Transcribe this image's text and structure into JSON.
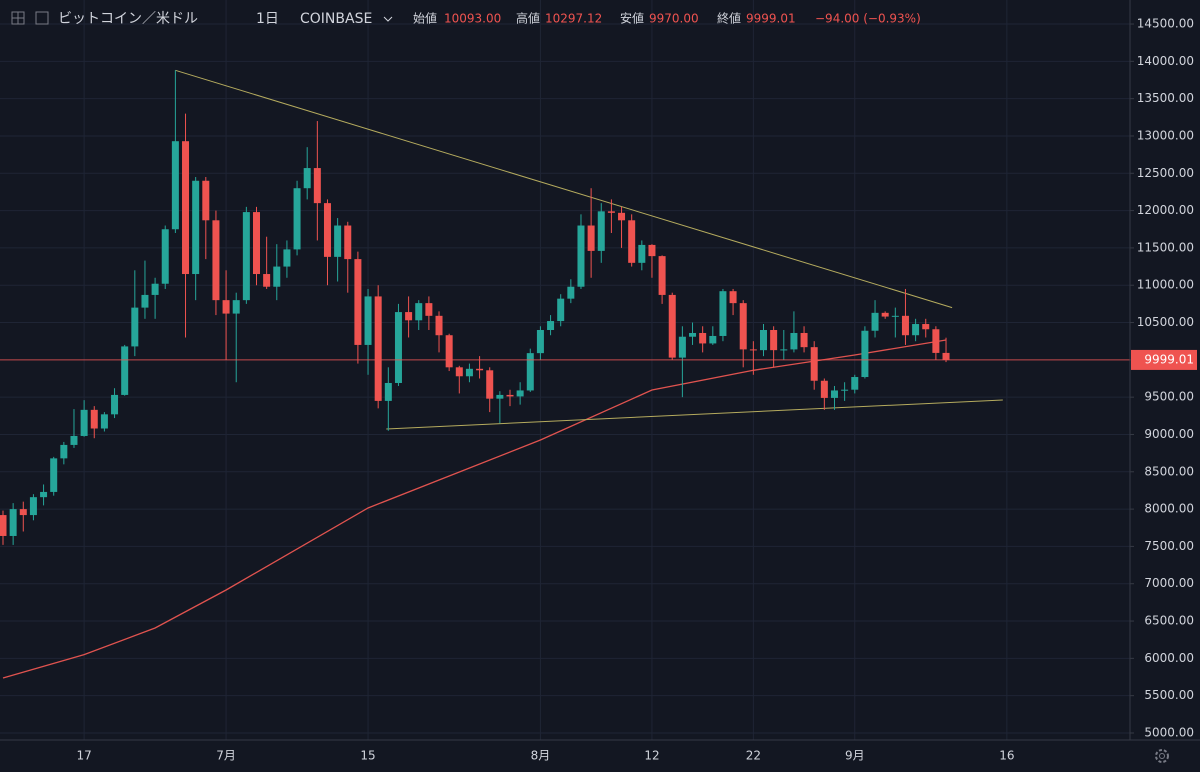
{
  "header": {
    "symbol": "ビットコイン／米ドル",
    "interval": "1日",
    "exchange": "COINBASE",
    "ohlc": [
      {
        "label": "始値",
        "value": "10093.00"
      },
      {
        "label": "高値",
        "value": "10297.12"
      },
      {
        "label": "安値",
        "value": "9970.00"
      },
      {
        "label": "終値",
        "value": "9999.01"
      }
    ],
    "change": "−94.00 (−0.93%)"
  },
  "chart_data": {
    "type": "candlestick",
    "categories": [
      null,
      null,
      null,
      null,
      null,
      null,
      null,
      null,
      "17",
      null,
      null,
      null,
      null,
      null,
      null,
      null,
      null,
      null,
      null,
      null,
      null,
      null,
      "7月",
      null,
      null,
      null,
      null,
      null,
      null,
      null,
      null,
      null,
      null,
      null,
      null,
      null,
      "15",
      null,
      null,
      null,
      null,
      null,
      null,
      null,
      null,
      null,
      null,
      null,
      null,
      null,
      null,
      null,
      null,
      "8月",
      null,
      null,
      null,
      null,
      null,
      null,
      null,
      null,
      null,
      null,
      "12",
      null,
      null,
      null,
      null,
      null,
      null,
      null,
      null,
      null,
      "22",
      null,
      null,
      null,
      null,
      null,
      null,
      null,
      null,
      null,
      "9月",
      null,
      null,
      null,
      null,
      null,
      null,
      null,
      null,
      null,
      null,
      null,
      null,
      null,
      null,
      "16"
    ],
    "open": [
      7920,
      7640,
      8000,
      7920,
      8160,
      8230,
      8680,
      8860,
      8980,
      9330,
      9080,
      9270,
      9530,
      10180,
      10700,
      10870,
      11020,
      11750,
      12930,
      11150,
      12400,
      11870,
      10800,
      10620,
      10800,
      11980,
      11150,
      10980,
      11250,
      11480,
      12300,
      12570,
      12100,
      11380,
      11800,
      11350,
      10200,
      10850,
      9450,
      9690,
      10640,
      10530,
      10760,
      10590,
      10330,
      9900,
      9780,
      9880,
      9860,
      9480,
      9530,
      9510,
      9590,
      10090,
      10400,
      10520,
      10820,
      10980,
      11800,
      11460,
      11990,
      11970,
      11870,
      11300,
      11540,
      11390,
      10870,
      10030,
      10310,
      10360,
      10220,
      10320,
      10920,
      10760,
      10140,
      10130,
      10400,
      10130,
      10140,
      10360,
      10170,
      9720,
      9490,
      9590,
      9600,
      9770,
      10390,
      10630,
      10580,
      10590,
      10330,
      10480,
      10410,
      10093,
      null,
      null,
      null,
      null,
      null,
      null
    ],
    "high": [
      7980,
      8080,
      8100,
      8200,
      8330,
      8700,
      8900,
      9340,
      9460,
      9380,
      9300,
      9620,
      10200,
      11200,
      11330,
      11100,
      11800,
      13880,
      13300,
      12450,
      12450,
      12000,
      11200,
      10900,
      12050,
      12050,
      11650,
      11550,
      11600,
      12400,
      12850,
      13200,
      12150,
      11900,
      11850,
      11450,
      10950,
      11000,
      9900,
      10750,
      10850,
      10800,
      10850,
      10650,
      10350,
      9920,
      9950,
      10050,
      9900,
      9580,
      9600,
      9700,
      10150,
      10450,
      10600,
      10880,
      11080,
      11950,
      12300,
      12100,
      12150,
      12050,
      11950,
      11600,
      11550,
      11400,
      10900,
      10450,
      10500,
      10450,
      10450,
      10950,
      10950,
      10800,
      10250,
      10480,
      10450,
      10400,
      10650,
      10450,
      10250,
      9750,
      9650,
      9700,
      9800,
      10450,
      10800,
      10650,
      10700,
      10950,
      10550,
      10550,
      10450,
      10297.12,
      null,
      null,
      null,
      null,
      null,
      null
    ],
    "low": [
      7520,
      7520,
      7700,
      7850,
      8050,
      8180,
      8600,
      8820,
      8970,
      8950,
      9040,
      9220,
      9520,
      10050,
      10550,
      10550,
      10950,
      11700,
      10300,
      10800,
      11350,
      10600,
      10000,
      9700,
      10750,
      11000,
      10950,
      10800,
      11100,
      11400,
      12150,
      11600,
      11000,
      11050,
      10900,
      9950,
      9800,
      9350,
      9050,
      9650,
      10300,
      10400,
      10400,
      10100,
      9850,
      9550,
      9700,
      9750,
      9300,
      9150,
      9380,
      9400,
      9570,
      10000,
      10330,
      10450,
      10760,
      10950,
      11100,
      11300,
      11700,
      11500,
      11250,
      11200,
      11100,
      10750,
      10000,
      9500,
      10200,
      10100,
      10200,
      10250,
      10600,
      9900,
      9800,
      10050,
      9900,
      10000,
      10100,
      10100,
      9600,
      9330,
      9330,
      9450,
      9550,
      9750,
      10300,
      10550,
      10300,
      10200,
      10250,
      10300,
      10000,
      9970,
      null,
      null,
      null,
      null,
      null,
      null
    ],
    "close": [
      7640,
      8000,
      7920,
      8160,
      8230,
      8680,
      8860,
      8980,
      9330,
      9080,
      9270,
      9530,
      10180,
      10700,
      10870,
      11020,
      11750,
      12930,
      11150,
      12400,
      11870,
      10800,
      10620,
      10800,
      11980,
      11150,
      10980,
      11250,
      11480,
      12300,
      12570,
      12100,
      11380,
      11800,
      11350,
      10200,
      10850,
      9450,
      9690,
      10640,
      10530,
      10760,
      10590,
      10330,
      9900,
      9780,
      9880,
      9860,
      9480,
      9530,
      9510,
      9590,
      10090,
      10400,
      10520,
      10820,
      10980,
      11800,
      11460,
      11990,
      11970,
      11870,
      11300,
      11540,
      11390,
      10870,
      10030,
      10310,
      10360,
      10220,
      10320,
      10920,
      10760,
      10140,
      10130,
      10400,
      10130,
      10140,
      10360,
      10170,
      9720,
      9490,
      9590,
      9600,
      9770,
      10390,
      10630,
      10580,
      10590,
      10330,
      10480,
      10410,
      10093,
      9999.01,
      null,
      null,
      null,
      null,
      null,
      null
    ],
    "up_color": "#26a69a",
    "down_color": "#ef5350",
    "moving_average": {
      "color": "#e0534f",
      "x": [
        0,
        8,
        15,
        22,
        36,
        53,
        64,
        74,
        84,
        93
      ],
      "values": [
        5737,
        6050,
        6407,
        6916,
        8015,
        8926,
        9596,
        9860,
        10065,
        10266
      ]
    },
    "trendlines": {
      "color": "#b5ab5e",
      "lines": [
        {
          "x": [
            17,
            93.6
          ],
          "values": [
            13880,
            10700
          ]
        },
        {
          "x": [
            37.8,
            98.6
          ],
          "values": [
            9074,
            9462
          ]
        }
      ]
    },
    "ylim": [
      4906,
      14822
    ],
    "yticks": [
      {
        "value": 5000,
        "label": "5000.00"
      },
      {
        "value": 5500,
        "label": "5500.00"
      },
      {
        "value": 6000,
        "label": "6000.00"
      },
      {
        "value": 6500,
        "label": "6500.00"
      },
      {
        "value": 7000,
        "label": "7000.00"
      },
      {
        "value": 7500,
        "label": "7500.00"
      },
      {
        "value": 8000,
        "label": "8000.00"
      },
      {
        "value": 8500,
        "label": "8500.00"
      },
      {
        "value": 9000,
        "label": "9000.00"
      },
      {
        "value": 9500,
        "label": "9500.00"
      },
      {
        "value": 10000,
        "label": "10000.00"
      },
      {
        "value": 10500,
        "label": "10500.00"
      },
      {
        "value": 11000,
        "label": "11000.00"
      },
      {
        "value": 11500,
        "label": "11500.00"
      },
      {
        "value": 12000,
        "label": "12000.00"
      },
      {
        "value": 12500,
        "label": "12500.00"
      },
      {
        "value": 13000,
        "label": "13000.00"
      },
      {
        "value": 13500,
        "label": "13500.00"
      },
      {
        "value": 14000,
        "label": "14000.00"
      },
      {
        "value": 14500,
        "label": "14500.00"
      }
    ],
    "grid": true
  }
}
